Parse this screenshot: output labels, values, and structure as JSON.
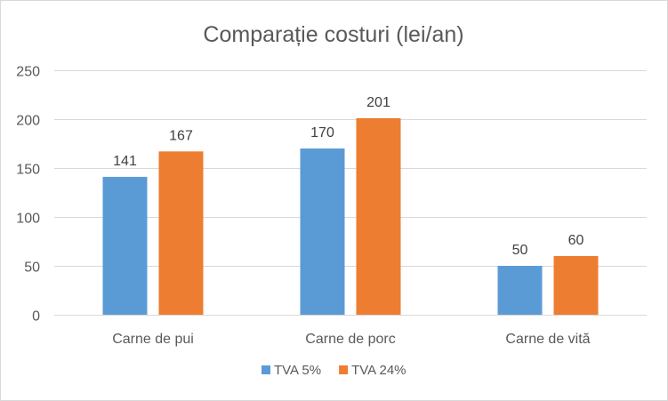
{
  "chart_data": {
    "type": "bar",
    "title": "Comparație costuri (lei/an)",
    "categories": [
      "Carne de pui",
      "Carne de porc",
      "Carne de vită"
    ],
    "series": [
      {
        "name": "TVA 5%",
        "values": [
          141,
          170,
          50
        ],
        "color": "#5b9bd5"
      },
      {
        "name": "TVA 24%",
        "values": [
          167,
          201,
          60
        ],
        "color": "#ed7d31"
      }
    ],
    "ylim": [
      0,
      250
    ],
    "yticks": [
      0,
      50,
      100,
      150,
      200,
      250
    ],
    "grid": true,
    "legend_position": "bottom",
    "data_labels": true
  }
}
